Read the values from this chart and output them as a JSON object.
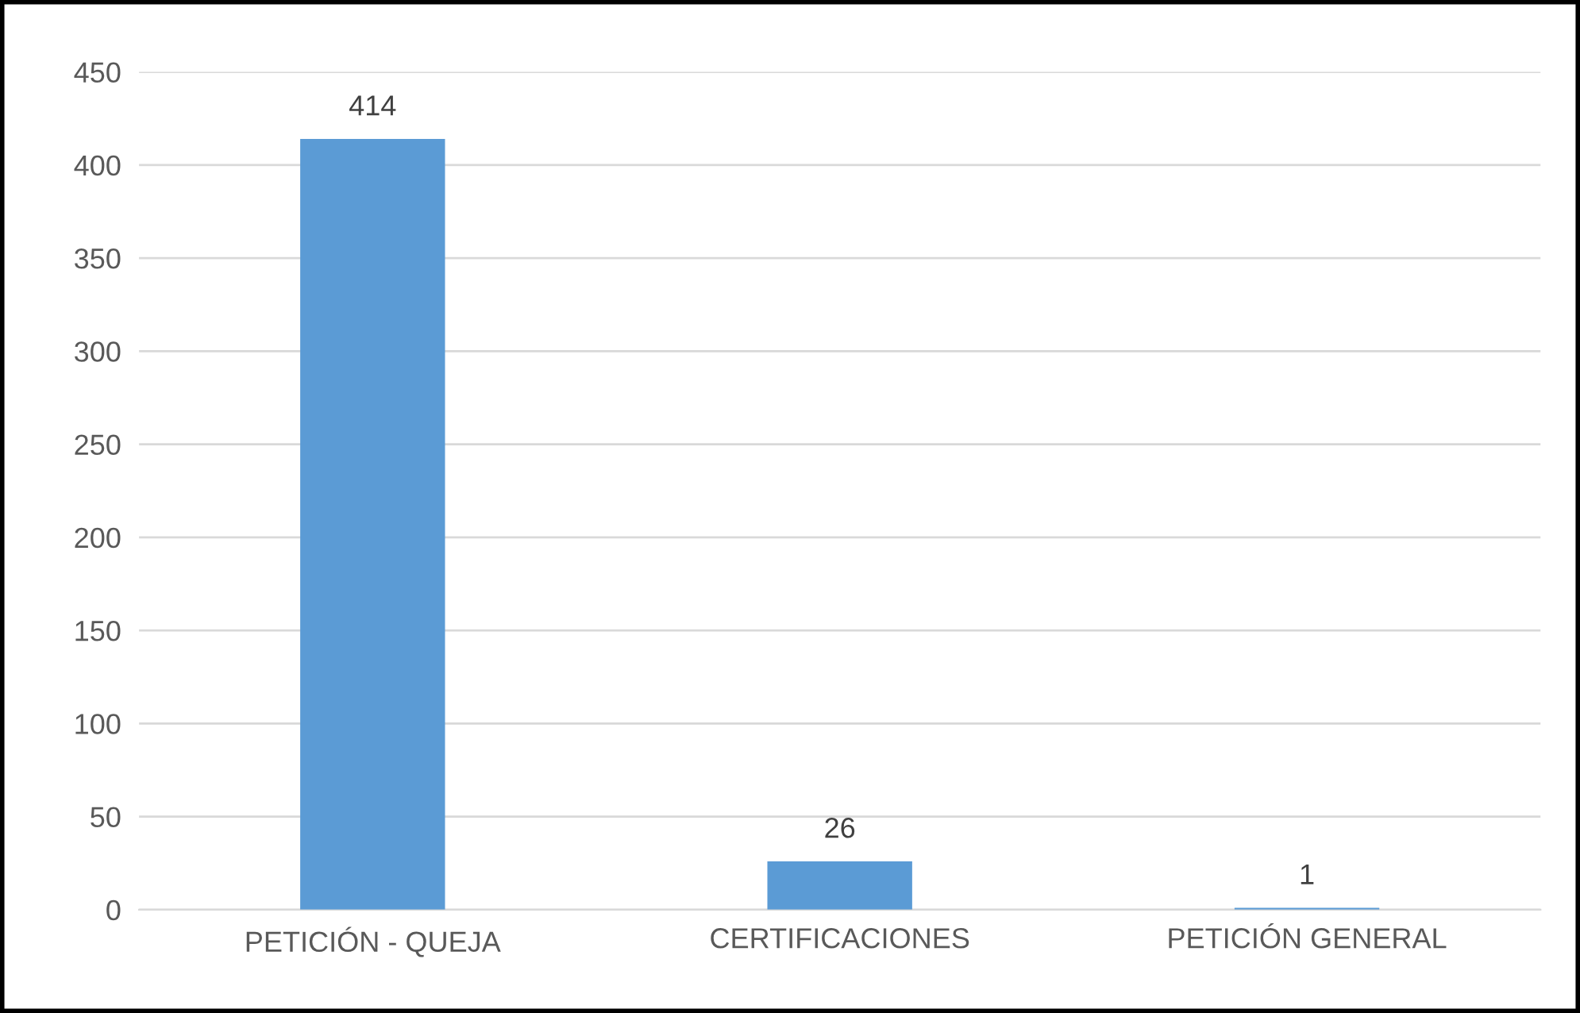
{
  "chart_data": {
    "type": "bar",
    "categories": [
      "PETICIÓN - QUEJA",
      "CERTIFICACIONES",
      "PETICIÓN GENERAL"
    ],
    "values": [
      414,
      26,
      1
    ],
    "color": "#5b9bd5",
    "ylim": [
      0,
      450
    ],
    "yticks": [
      0,
      50,
      100,
      150,
      200,
      250,
      300,
      350,
      400,
      450
    ],
    "grid": "y",
    "data_labels": true
  }
}
